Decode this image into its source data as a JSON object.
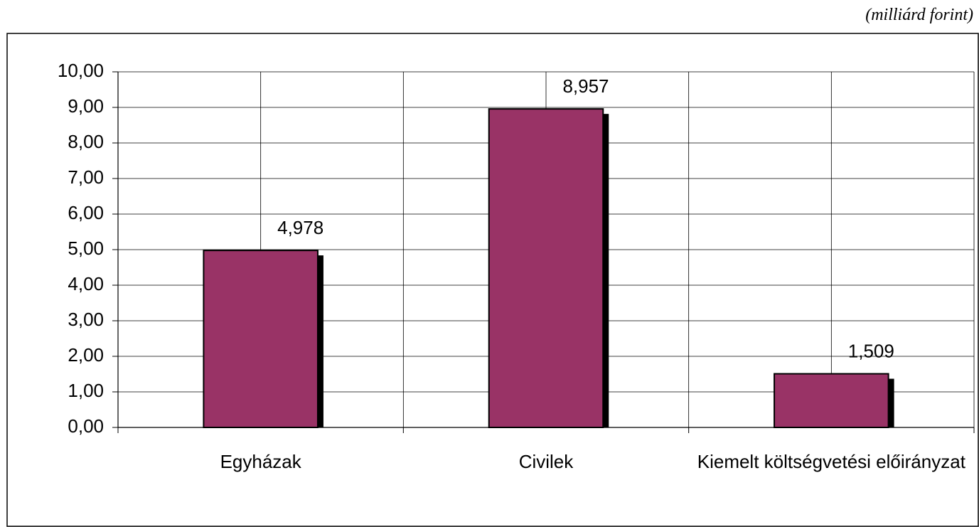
{
  "chart_data": {
    "type": "bar",
    "subtitle": "(milliárd forint)",
    "categories": [
      "Egyházak",
      "Civilek",
      "Kiemelt költségvetési előirányzat"
    ],
    "values": [
      4.978,
      8.957,
      1.509
    ],
    "value_labels": [
      "4,978",
      "8,957",
      "1,509"
    ],
    "color": "#993366",
    "ylim": [
      0,
      10
    ],
    "yticks": [
      {
        "value": 0,
        "label": "0,00"
      },
      {
        "value": 1,
        "label": "1,00"
      },
      {
        "value": 2,
        "label": "2,00"
      },
      {
        "value": 3,
        "label": "3,00"
      },
      {
        "value": 4,
        "label": "4,00"
      },
      {
        "value": 5,
        "label": "5,00"
      },
      {
        "value": 6,
        "label": "6,00"
      },
      {
        "value": 7,
        "label": "7,00"
      },
      {
        "value": 8,
        "label": "8,00"
      },
      {
        "value": 9,
        "label": "9,00"
      },
      {
        "value": 10,
        "label": "10,00"
      }
    ],
    "grid": true
  }
}
